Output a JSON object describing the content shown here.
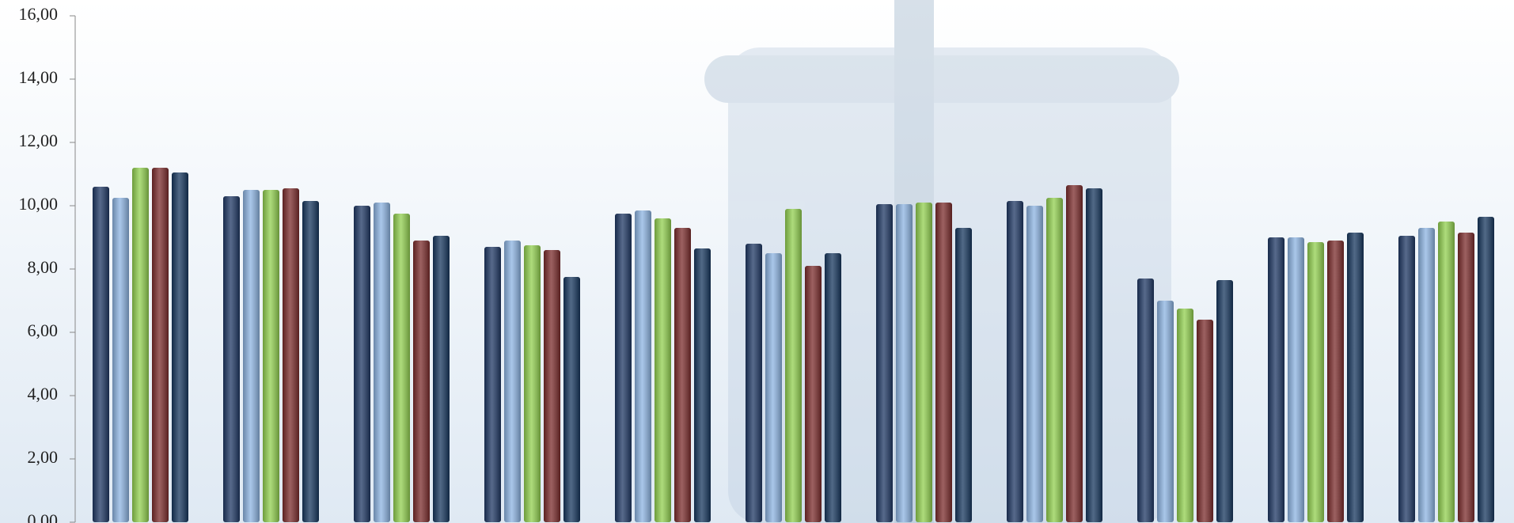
{
  "chart_data": {
    "type": "bar",
    "categories": [
      null,
      null,
      null,
      null,
      null,
      null,
      null,
      null,
      null,
      null,
      null
    ],
    "series": [
      {
        "color": "#1f3864",
        "values": [
          10.6,
          10.3,
          10.0,
          8.7,
          9.75,
          8.8,
          10.05,
          10.15,
          7.7,
          9.0,
          9.05
        ]
      },
      {
        "color": "#8db4e2",
        "values": [
          10.25,
          10.5,
          10.1,
          8.9,
          9.85,
          8.5,
          10.05,
          10.0,
          7.0,
          9.0,
          9.3
        ]
      },
      {
        "color": "#92d050",
        "values": [
          11.2,
          10.5,
          9.75,
          8.75,
          9.6,
          9.9,
          10.1,
          10.25,
          6.75,
          8.85,
          9.5
        ]
      },
      {
        "color": "#7b2c2c",
        "values": [
          11.2,
          10.55,
          8.9,
          8.6,
          9.3,
          8.1,
          10.1,
          10.65,
          6.4,
          8.9,
          9.15
        ]
      },
      {
        "color": "#17375e",
        "values": [
          11.05,
          10.15,
          9.05,
          7.75,
          8.65,
          8.5,
          9.3,
          10.55,
          7.65,
          9.15,
          9.65
        ]
      }
    ],
    "ylim": [
      0,
      16
    ],
    "yticks": [
      {
        "value": 0,
        "label": "0,00"
      },
      {
        "value": 2,
        "label": "2,00"
      },
      {
        "value": 4,
        "label": "4,00"
      },
      {
        "value": 6,
        "label": "6,00"
      },
      {
        "value": 8,
        "label": "8,00"
      },
      {
        "value": 10,
        "label": "10,00"
      },
      {
        "value": 12,
        "label": "12,00"
      },
      {
        "value": 14,
        "label": "14,00"
      },
      {
        "value": 16,
        "label": "16,00"
      }
    ],
    "grid": false
  }
}
